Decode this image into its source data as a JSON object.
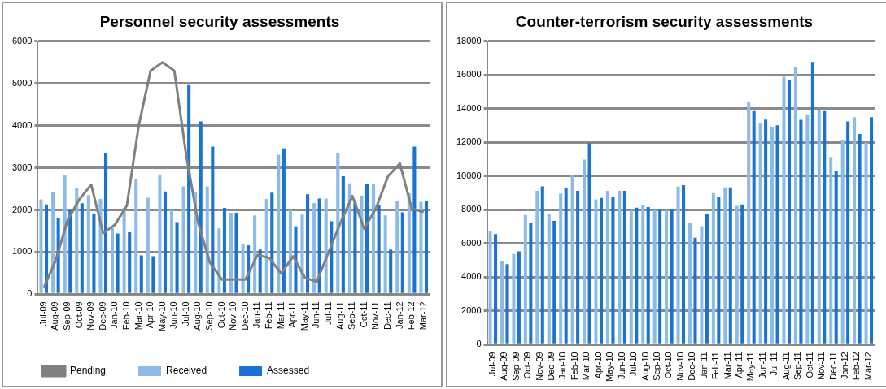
{
  "chart_data": [
    {
      "type": "bar",
      "title": "Personnel security assessments",
      "categories": [
        "Jul-09",
        "Aug-09",
        "Sep-09",
        "Oct-09",
        "Nov-09",
        "Dec-09",
        "Jan-10",
        "Feb-10",
        "Mar-10",
        "Apr-10",
        "May-10",
        "Jun-10",
        "Jul-10",
        "Aug-10",
        "Sep-10",
        "Oct-10",
        "Nov-10",
        "Dec-10",
        "Jan-11",
        "Feb-11",
        "Mar-11",
        "Apr-11",
        "May-11",
        "Jun-11",
        "Jul-11",
        "Aug-11",
        "Sep-11",
        "Oct-11",
        "Nov-11",
        "Dec-11",
        "Jan-12",
        "Feb-12",
        "Mar-12"
      ],
      "series": [
        {
          "name": "Received",
          "color": "#8dbbe8",
          "values": [
            2250,
            2430,
            2830,
            2530,
            2350,
            2260,
            1570,
            2050,
            2740,
            2290,
            2830,
            2010,
            2560,
            2430,
            2560,
            1560,
            1930,
            1190,
            1870,
            2260,
            3310,
            2000,
            1890,
            2160,
            2270,
            3340,
            2630,
            2340,
            2610,
            1870,
            2210,
            2400,
            2190
          ]
        },
        {
          "name": "Assessed",
          "color": "#1a73d0",
          "values": [
            2130,
            1800,
            1990,
            2160,
            1900,
            3350,
            1440,
            1470,
            920,
            900,
            2440,
            1710,
            4960,
            4100,
            3500,
            2050,
            1930,
            1160,
            1060,
            2410,
            3460,
            1610,
            2370,
            2270,
            1730,
            2800,
            2180,
            2610,
            2120,
            1060,
            1940,
            3500,
            2210
          ]
        },
        {
          "name": "Pending",
          "type": "line",
          "color": "#808080",
          "values": [
            150,
            800,
            1750,
            2250,
            2600,
            1450,
            1650,
            2100,
            4000,
            5300,
            5500,
            5300,
            3300,
            1700,
            750,
            350,
            350,
            350,
            930,
            860,
            490,
            900,
            390,
            300,
            1000,
            1700,
            2330,
            1550,
            2050,
            2800,
            3100,
            2030,
            1950
          ]
        }
      ],
      "ylim": [
        0,
        6000
      ],
      "yticks": [
        0,
        1000,
        2000,
        3000,
        4000,
        5000,
        6000
      ],
      "grid": "y",
      "legend": "bottom",
      "marker": "none"
    },
    {
      "type": "bar",
      "title": "Counter-terrorism security assessments",
      "categories": [
        "Jul-09",
        "Aug-09",
        "Sep-09",
        "Oct-09",
        "Nov-09",
        "Dec-09",
        "Jan-10",
        "Feb-10",
        "Mar-10",
        "Apr-10",
        "May-10",
        "Jun-10",
        "Jul-10",
        "Aug-10",
        "Sep-10",
        "Oct-10",
        "Nov-10",
        "Dec-10",
        "Jan-11",
        "Feb-11",
        "Mar-11",
        "Apr-11",
        "May-11",
        "Jun-11",
        "Jul-11",
        "Aug-11",
        "Sep-11",
        "Oct-11",
        "Nov-11",
        "Dec-11",
        "Jan-12",
        "Feb-12",
        "Mar-12"
      ],
      "series": [
        {
          "color": "#8dbbe8",
          "values": [
            6740,
            4960,
            5380,
            7690,
            9120,
            7780,
            8960,
            10060,
            10980,
            8620,
            9120,
            9120,
            7970,
            8270,
            7970,
            7950,
            9380,
            7200,
            7030,
            8990,
            9330,
            8230,
            14380,
            13170,
            12930,
            15890,
            16500,
            13670,
            13930,
            11120,
            12140,
            13500,
            11990
          ]
        },
        {
          "color": "#1a73d0",
          "values": [
            6560,
            4770,
            5530,
            7240,
            9390,
            7340,
            9290,
            9120,
            11960,
            8700,
            8790,
            9120,
            8120,
            8160,
            8040,
            8040,
            9460,
            6340,
            7720,
            8750,
            9330,
            8320,
            13860,
            13350,
            13020,
            15730,
            13340,
            16770,
            13860,
            10280,
            13240,
            12500,
            13500
          ]
        }
      ],
      "ylim": [
        0,
        18000
      ],
      "yticks": [
        0,
        2000,
        4000,
        6000,
        8000,
        10000,
        12000,
        14000,
        16000,
        18000
      ],
      "grid": "y",
      "legend": false
    }
  ]
}
